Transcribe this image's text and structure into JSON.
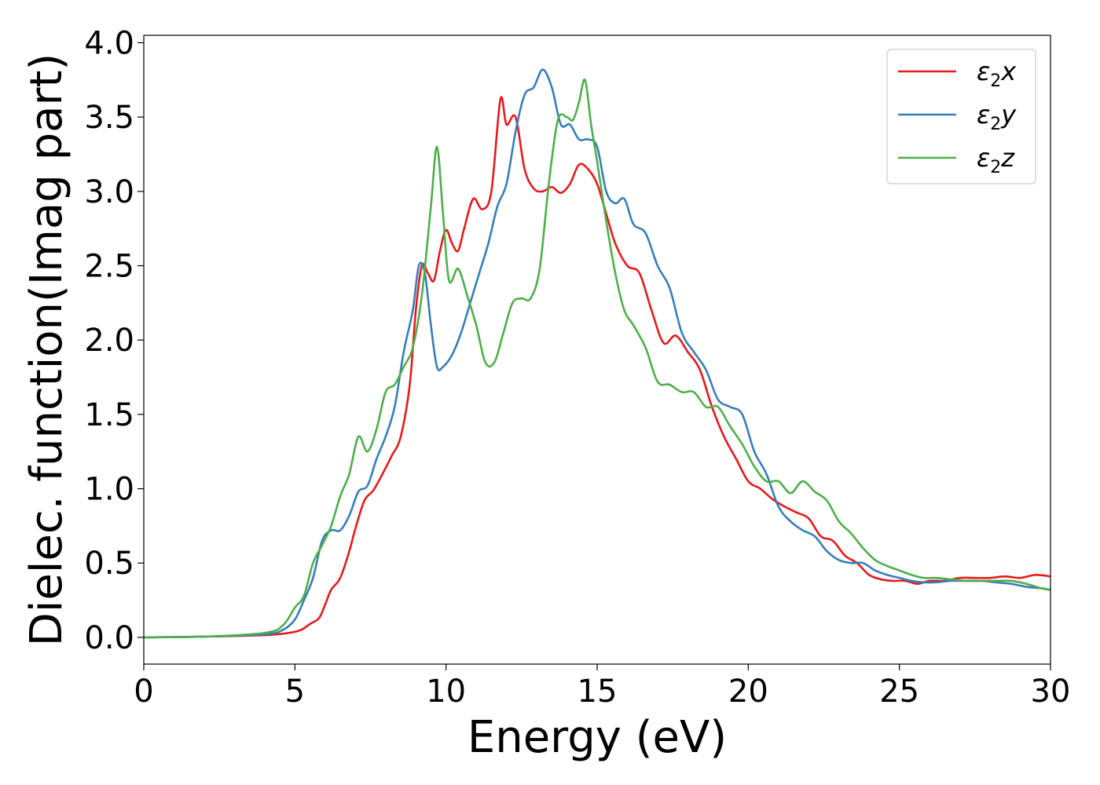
{
  "chart_data": {
    "type": "line",
    "xlabel": "Energy (eV)",
    "ylabel": "Dielec. function(Imag part)",
    "xlim": [
      0,
      30
    ],
    "ylim": [
      -0.18,
      4.05
    ],
    "xticks": [
      0,
      5,
      10,
      15,
      20,
      25,
      30
    ],
    "xtick_labels": [
      "0",
      "5",
      "10",
      "15",
      "20",
      "25",
      "30"
    ],
    "yticks": [
      0.0,
      0.5,
      1.0,
      1.5,
      2.0,
      2.5,
      3.0,
      3.5,
      4.0
    ],
    "ytick_labels": [
      "0.0",
      "0.5",
      "1.0",
      "1.5",
      "2.0",
      "2.5",
      "3.0",
      "3.5",
      "4.0"
    ],
    "grid": false,
    "legend_position": "top-right",
    "series": [
      {
        "name": "ε₂x",
        "legend_base": "ε",
        "legend_sub": "2",
        "legend_var": "x",
        "color": "#e41a1c",
        "x": [
          0,
          2,
          4,
          4.8,
          5.2,
          5.5,
          5.8,
          6.0,
          6.2,
          6.5,
          6.8,
          7.0,
          7.3,
          7.6,
          7.9,
          8.2,
          8.5,
          8.8,
          9.0,
          9.2,
          9.4,
          9.6,
          9.8,
          10.0,
          10.2,
          10.4,
          10.6,
          10.9,
          11.2,
          11.5,
          11.8,
          12.0,
          12.3,
          12.6,
          12.9,
          13.2,
          13.5,
          13.8,
          14.1,
          14.4,
          14.7,
          15.0,
          15.3,
          15.6,
          16.0,
          16.4,
          16.8,
          17.2,
          17.6,
          18.0,
          18.4,
          18.8,
          19.2,
          19.6,
          20.0,
          20.4,
          20.8,
          21.2,
          21.6,
          22.0,
          22.4,
          22.8,
          23.2,
          23.6,
          24.0,
          24.4,
          24.8,
          25.2,
          25.6,
          26.0,
          26.5,
          27.0,
          27.5,
          28.0,
          28.5,
          29.0,
          29.5,
          30.0
        ],
        "y": [
          0.0,
          0.005,
          0.015,
          0.03,
          0.05,
          0.09,
          0.13,
          0.22,
          0.32,
          0.4,
          0.58,
          0.73,
          0.92,
          0.99,
          1.1,
          1.22,
          1.35,
          1.7,
          2.2,
          2.5,
          2.45,
          2.4,
          2.6,
          2.74,
          2.65,
          2.6,
          2.75,
          2.95,
          2.88,
          3.0,
          3.62,
          3.45,
          3.5,
          3.15,
          3.02,
          3.0,
          3.03,
          2.99,
          3.05,
          3.18,
          3.15,
          3.05,
          2.85,
          2.65,
          2.5,
          2.45,
          2.2,
          1.98,
          2.03,
          1.92,
          1.8,
          1.55,
          1.35,
          1.2,
          1.05,
          1.0,
          0.93,
          0.88,
          0.84,
          0.8,
          0.68,
          0.65,
          0.55,
          0.5,
          0.42,
          0.39,
          0.38,
          0.38,
          0.36,
          0.38,
          0.38,
          0.4,
          0.4,
          0.4,
          0.41,
          0.4,
          0.42,
          0.41
        ]
      },
      {
        "name": "ε₂y",
        "legend_base": "ε",
        "legend_sub": "2",
        "legend_var": "y",
        "color": "#377eb8",
        "x": [
          0,
          2,
          4,
          4.6,
          5.0,
          5.3,
          5.6,
          5.9,
          6.2,
          6.5,
          6.8,
          7.1,
          7.4,
          7.7,
          8.0,
          8.3,
          8.6,
          8.9,
          9.1,
          9.3,
          9.5,
          9.7,
          9.9,
          10.2,
          10.5,
          10.8,
          11.1,
          11.4,
          11.7,
          12.0,
          12.3,
          12.6,
          12.9,
          13.2,
          13.5,
          13.8,
          14.1,
          14.4,
          14.7,
          15.0,
          15.3,
          15.6,
          15.9,
          16.2,
          16.6,
          17.0,
          17.4,
          17.8,
          18.2,
          18.6,
          19.0,
          19.4,
          19.8,
          20.2,
          20.6,
          21.0,
          21.4,
          21.8,
          22.2,
          22.6,
          23.0,
          23.4,
          23.8,
          24.2,
          24.6,
          25.0,
          25.4,
          25.8,
          26.2,
          26.7,
          27.2,
          27.7,
          28.2,
          28.7,
          29.2,
          29.7,
          30.0
        ],
        "y": [
          0.0,
          0.005,
          0.02,
          0.05,
          0.12,
          0.25,
          0.4,
          0.65,
          0.72,
          0.72,
          0.82,
          0.98,
          1.02,
          1.2,
          1.35,
          1.55,
          1.92,
          2.2,
          2.5,
          2.45,
          2.1,
          1.82,
          1.82,
          1.9,
          2.05,
          2.25,
          2.45,
          2.65,
          2.9,
          3.05,
          3.4,
          3.65,
          3.7,
          3.82,
          3.7,
          3.45,
          3.45,
          3.35,
          3.35,
          3.3,
          3.0,
          2.92,
          2.95,
          2.78,
          2.72,
          2.5,
          2.35,
          2.05,
          1.92,
          1.8,
          1.6,
          1.55,
          1.5,
          1.25,
          1.1,
          0.88,
          0.78,
          0.72,
          0.68,
          0.58,
          0.52,
          0.5,
          0.5,
          0.45,
          0.42,
          0.4,
          0.38,
          0.37,
          0.37,
          0.38,
          0.38,
          0.38,
          0.37,
          0.36,
          0.34,
          0.33,
          0.32
        ]
      },
      {
        "name": "ε₂z",
        "legend_base": "ε",
        "legend_sub": "2",
        "legend_var": "z",
        "color": "#4daf4a",
        "x": [
          0,
          2,
          4,
          4.6,
          5.0,
          5.3,
          5.6,
          5.9,
          6.2,
          6.5,
          6.8,
          7.1,
          7.4,
          7.7,
          8.0,
          8.3,
          8.6,
          8.9,
          9.2,
          9.5,
          9.7,
          9.9,
          10.1,
          10.4,
          10.7,
          11.0,
          11.3,
          11.6,
          11.9,
          12.2,
          12.5,
          12.8,
          13.1,
          13.4,
          13.7,
          14.0,
          14.2,
          14.4,
          14.6,
          14.8,
          15.0,
          15.3,
          15.6,
          15.9,
          16.2,
          16.6,
          17.0,
          17.4,
          17.8,
          18.2,
          18.6,
          19.0,
          19.4,
          19.8,
          20.2,
          20.6,
          21.0,
          21.4,
          21.8,
          22.2,
          22.6,
          23.0,
          23.4,
          23.8,
          24.2,
          24.6,
          25.0,
          25.4,
          25.8,
          26.2,
          26.7,
          27.2,
          27.7,
          28.2,
          28.7,
          29.2,
          29.7,
          30.0
        ],
        "y": [
          0.0,
          0.005,
          0.03,
          0.08,
          0.2,
          0.28,
          0.5,
          0.62,
          0.75,
          0.95,
          1.1,
          1.35,
          1.25,
          1.4,
          1.65,
          1.7,
          1.82,
          1.95,
          2.3,
          2.9,
          3.3,
          2.85,
          2.4,
          2.48,
          2.3,
          2.1,
          1.85,
          1.85,
          2.05,
          2.25,
          2.28,
          2.28,
          2.48,
          3.05,
          3.48,
          3.5,
          3.48,
          3.6,
          3.75,
          3.45,
          3.2,
          2.8,
          2.45,
          2.2,
          2.1,
          1.95,
          1.72,
          1.7,
          1.65,
          1.65,
          1.55,
          1.55,
          1.42,
          1.3,
          1.15,
          1.05,
          1.05,
          0.97,
          1.05,
          0.98,
          0.92,
          0.78,
          0.7,
          0.6,
          0.52,
          0.48,
          0.45,
          0.42,
          0.4,
          0.4,
          0.39,
          0.38,
          0.38,
          0.38,
          0.38,
          0.36,
          0.33,
          0.32
        ]
      }
    ]
  }
}
